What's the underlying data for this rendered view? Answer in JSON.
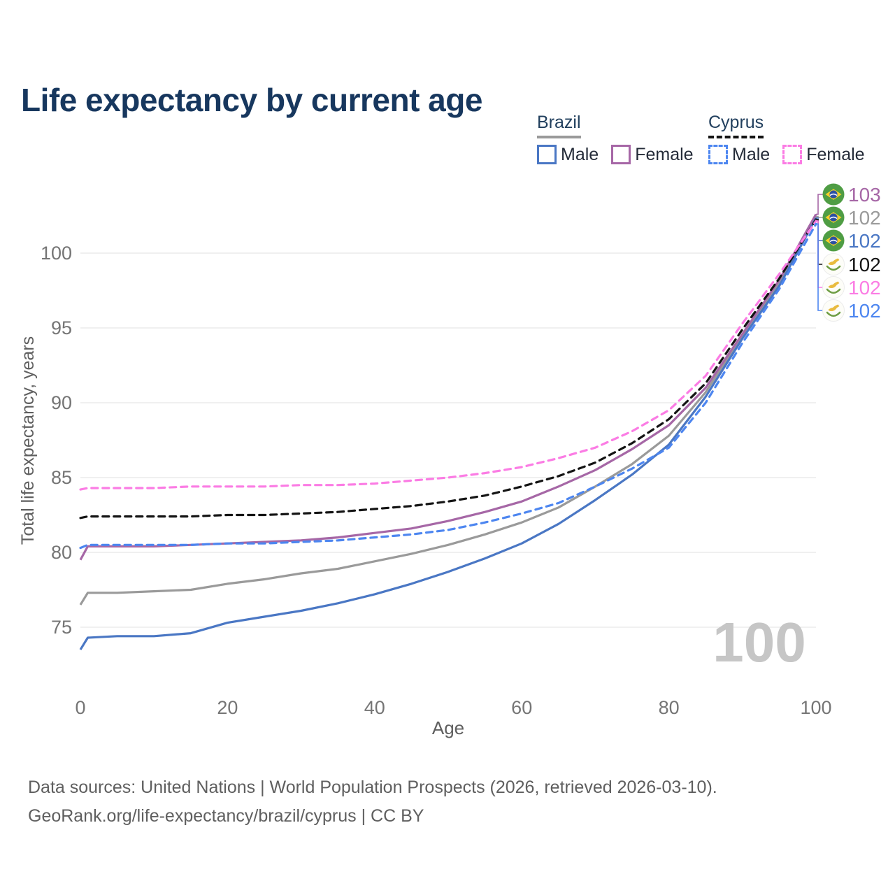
{
  "title": "Life expectancy by current age",
  "legend": {
    "groups": [
      {
        "id": "brazil",
        "label": "Brazil",
        "line_style": "solid",
        "line_color": "#9a9a9a",
        "items": [
          {
            "id": "male",
            "label": "Male",
            "color": "#4a77c4",
            "style": "solid"
          },
          {
            "id": "female",
            "label": "Female",
            "color": "#a667a6",
            "style": "solid"
          }
        ]
      },
      {
        "id": "cyprus",
        "label": "Cyprus",
        "line_style": "dashed",
        "line_color": "#141414",
        "items": [
          {
            "id": "male",
            "label": "Male",
            "color": "#4d86f0",
            "style": "dashed"
          },
          {
            "id": "female",
            "label": "Female",
            "color": "#fb7ce4",
            "style": "dashed"
          }
        ]
      }
    ]
  },
  "chart_data": {
    "type": "line",
    "title": "Life expectancy by current age",
    "xlabel": "Age",
    "ylabel": "Total life expectancy, years",
    "x_ticks": [
      0,
      20,
      40,
      60,
      80,
      100
    ],
    "y_ticks": [
      75,
      80,
      85,
      90,
      95,
      100
    ],
    "xlim": [
      0,
      100
    ],
    "ylim": [
      73,
      103
    ],
    "grid": "horizontal",
    "legend_position": "top-right",
    "watermark": "100",
    "x": [
      0,
      1,
      5,
      10,
      15,
      20,
      25,
      30,
      35,
      40,
      45,
      50,
      55,
      60,
      65,
      70,
      75,
      80,
      85,
      90,
      95,
      100
    ],
    "series": [
      {
        "name": "Brazil Total",
        "country": "brazil",
        "color": "#9a9a9a",
        "dash": "solid",
        "values": [
          76.5,
          77.3,
          77.3,
          77.4,
          77.5,
          77.9,
          78.2,
          78.6,
          78.9,
          79.4,
          79.9,
          80.5,
          81.2,
          82.0,
          83.0,
          84.4,
          85.9,
          87.8,
          90.7,
          94.5,
          98.0,
          102.45
        ]
      },
      {
        "name": "Brazil Female",
        "country": "brazil",
        "color": "#a667a6",
        "dash": "solid",
        "values": [
          79.5,
          80.4,
          80.4,
          80.4,
          80.5,
          80.6,
          80.7,
          80.8,
          81.0,
          81.3,
          81.6,
          82.1,
          82.7,
          83.4,
          84.4,
          85.5,
          86.9,
          88.5,
          91.0,
          94.6,
          98.2,
          102.6
        ]
      },
      {
        "name": "Brazil Male",
        "country": "brazil",
        "color": "#4a77c4",
        "dash": "solid",
        "values": [
          73.5,
          74.3,
          74.4,
          74.4,
          74.6,
          75.3,
          75.7,
          76.1,
          76.6,
          77.2,
          77.9,
          78.7,
          79.6,
          80.6,
          81.9,
          83.5,
          85.2,
          87.2,
          90.4,
          94.3,
          97.8,
          102.35
        ]
      },
      {
        "name": "Cyprus Total",
        "country": "cyprus",
        "color": "#141414",
        "dash": "dashed",
        "values": [
          82.3,
          82.4,
          82.4,
          82.4,
          82.4,
          82.5,
          82.5,
          82.6,
          82.7,
          82.9,
          83.1,
          83.4,
          83.8,
          84.4,
          85.1,
          86.0,
          87.3,
          88.9,
          91.3,
          94.9,
          98.3,
          102.25
        ]
      },
      {
        "name": "Cyprus Female",
        "country": "cyprus",
        "color": "#fb7ce4",
        "dash": "dashed",
        "values": [
          84.2,
          84.3,
          84.3,
          84.3,
          84.4,
          84.4,
          84.4,
          84.5,
          84.5,
          84.6,
          84.8,
          85.0,
          85.3,
          85.7,
          86.3,
          87.0,
          88.1,
          89.5,
          91.8,
          95.3,
          98.6,
          102.15
        ]
      },
      {
        "name": "Cyprus Male",
        "country": "cyprus",
        "color": "#4d86f0",
        "dash": "dashed",
        "values": [
          80.3,
          80.5,
          80.5,
          80.5,
          80.5,
          80.6,
          80.6,
          80.7,
          80.8,
          81.0,
          81.2,
          81.5,
          82.0,
          82.6,
          83.3,
          84.4,
          85.6,
          87.0,
          90.0,
          94.0,
          97.6,
          101.95
        ]
      }
    ],
    "end_rows": [
      {
        "series": "Brazil Female",
        "flag": "brazil",
        "value": "103",
        "color": "#a667a6"
      },
      {
        "series": "Brazil Total",
        "flag": "brazil",
        "value": "102",
        "color": "#9a9a9a"
      },
      {
        "series": "Brazil Male",
        "flag": "brazil",
        "value": "102",
        "color": "#4a77c4"
      },
      {
        "series": "Cyprus Total",
        "flag": "cyprus",
        "value": "102",
        "color": "#141414"
      },
      {
        "series": "Cyprus Female",
        "flag": "cyprus",
        "value": "102",
        "color": "#fb7ce4"
      },
      {
        "series": "Cyprus Male",
        "flag": "cyprus",
        "value": "102",
        "color": "#4d86f0"
      }
    ]
  },
  "footer": {
    "line1": "Data sources: United Nations | World Population Prospects (2026, retrieved 2026-03-10).",
    "line2": "GeoRank.org/life-expectancy/brazil/cyprus | CC BY"
  }
}
